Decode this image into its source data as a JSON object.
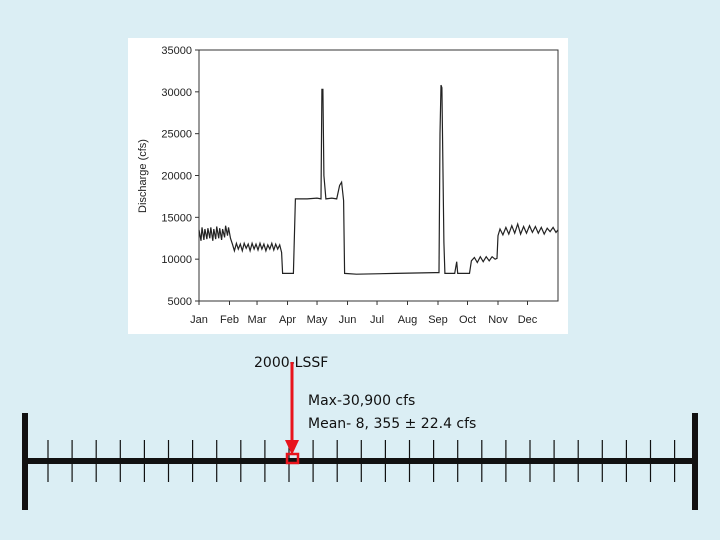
{
  "chart_data": {
    "type": "line",
    "ylabel": "Discharge (cfs)",
    "x": [
      0,
      2,
      3,
      5,
      6,
      8,
      9,
      11,
      12,
      14,
      15,
      17,
      18,
      20,
      21,
      23,
      24,
      26,
      27,
      29,
      30,
      32,
      34,
      36,
      38,
      40,
      42,
      44,
      46,
      48,
      50,
      52,
      54,
      56,
      58,
      60,
      62,
      64,
      66,
      68,
      70,
      72,
      74,
      76,
      78,
      80,
      82,
      84,
      85,
      96,
      98,
      110,
      120,
      124,
      125,
      126,
      127,
      129,
      135,
      140,
      143,
      145,
      147,
      148,
      160,
      200,
      240,
      244,
      245,
      246,
      247,
      249,
      250,
      260,
      262,
      263,
      265,
      275,
      277,
      280,
      283,
      286,
      289,
      292,
      295,
      298,
      301,
      303,
      304,
      306,
      309,
      312,
      315,
      318,
      321,
      324,
      327,
      330,
      333,
      336,
      339,
      342,
      345,
      348,
      351,
      354,
      357,
      360,
      363,
      365
    ],
    "series": [
      {
        "color": "#222222",
        "values": [
          13500,
          12200,
          13800,
          12300,
          13600,
          12400,
          13700,
          12500,
          13800,
          12200,
          13600,
          12400,
          13900,
          12500,
          13700,
          12300,
          13600,
          12600,
          14000,
          12800,
          13800,
          12500,
          11800,
          11000,
          11900,
          11200,
          11800,
          11000,
          11900,
          11300,
          11800,
          11000,
          11900,
          11200,
          11800,
          11100,
          11900,
          11200,
          11800,
          11000,
          11700,
          11200,
          11900,
          11100,
          11800,
          11200,
          11700,
          10800,
          8300,
          8300,
          17200,
          17200,
          17300,
          17200,
          30300,
          30300,
          20000,
          17200,
          17300,
          17200,
          18800,
          19200,
          17000,
          8300,
          8200,
          8300,
          8400,
          8400,
          25000,
          30800,
          30500,
          12000,
          8300,
          8300,
          9700,
          8300,
          8300,
          8300,
          9800,
          10200,
          9600,
          10300,
          9700,
          10300,
          9800,
          10300,
          10000,
          10100,
          12800,
          13600,
          12900,
          13800,
          13000,
          14000,
          13100,
          14200,
          13000,
          13900,
          13100,
          14000,
          13200,
          13900,
          13100,
          13800,
          13000,
          13700,
          13300,
          13800,
          13200,
          13500
        ]
      }
    ],
    "xlim": [
      0,
      365
    ],
    "xticks": [
      {
        "value": 0,
        "label": "Jan"
      },
      {
        "value": 31,
        "label": "Feb"
      },
      {
        "value": 59,
        "label": "Mar"
      },
      {
        "value": 90,
        "label": "Apr"
      },
      {
        "value": 120,
        "label": "May"
      },
      {
        "value": 151,
        "label": "Jun"
      },
      {
        "value": 181,
        "label": "Jul"
      },
      {
        "value": 212,
        "label": "Aug"
      },
      {
        "value": 243,
        "label": "Sep"
      },
      {
        "value": 273,
        "label": "Oct"
      },
      {
        "value": 304,
        "label": "Nov"
      },
      {
        "value": 334,
        "label": "Dec"
      }
    ],
    "ylim": [
      5000,
      35000
    ],
    "yticks": [
      5000,
      10000,
      15000,
      20000,
      25000,
      30000,
      35000
    ]
  },
  "slide": {
    "label": "2000-LSSF",
    "max": "Max-30,900 cfs",
    "mean": "Mean- 8, 355 ± 22.4 cfs"
  }
}
